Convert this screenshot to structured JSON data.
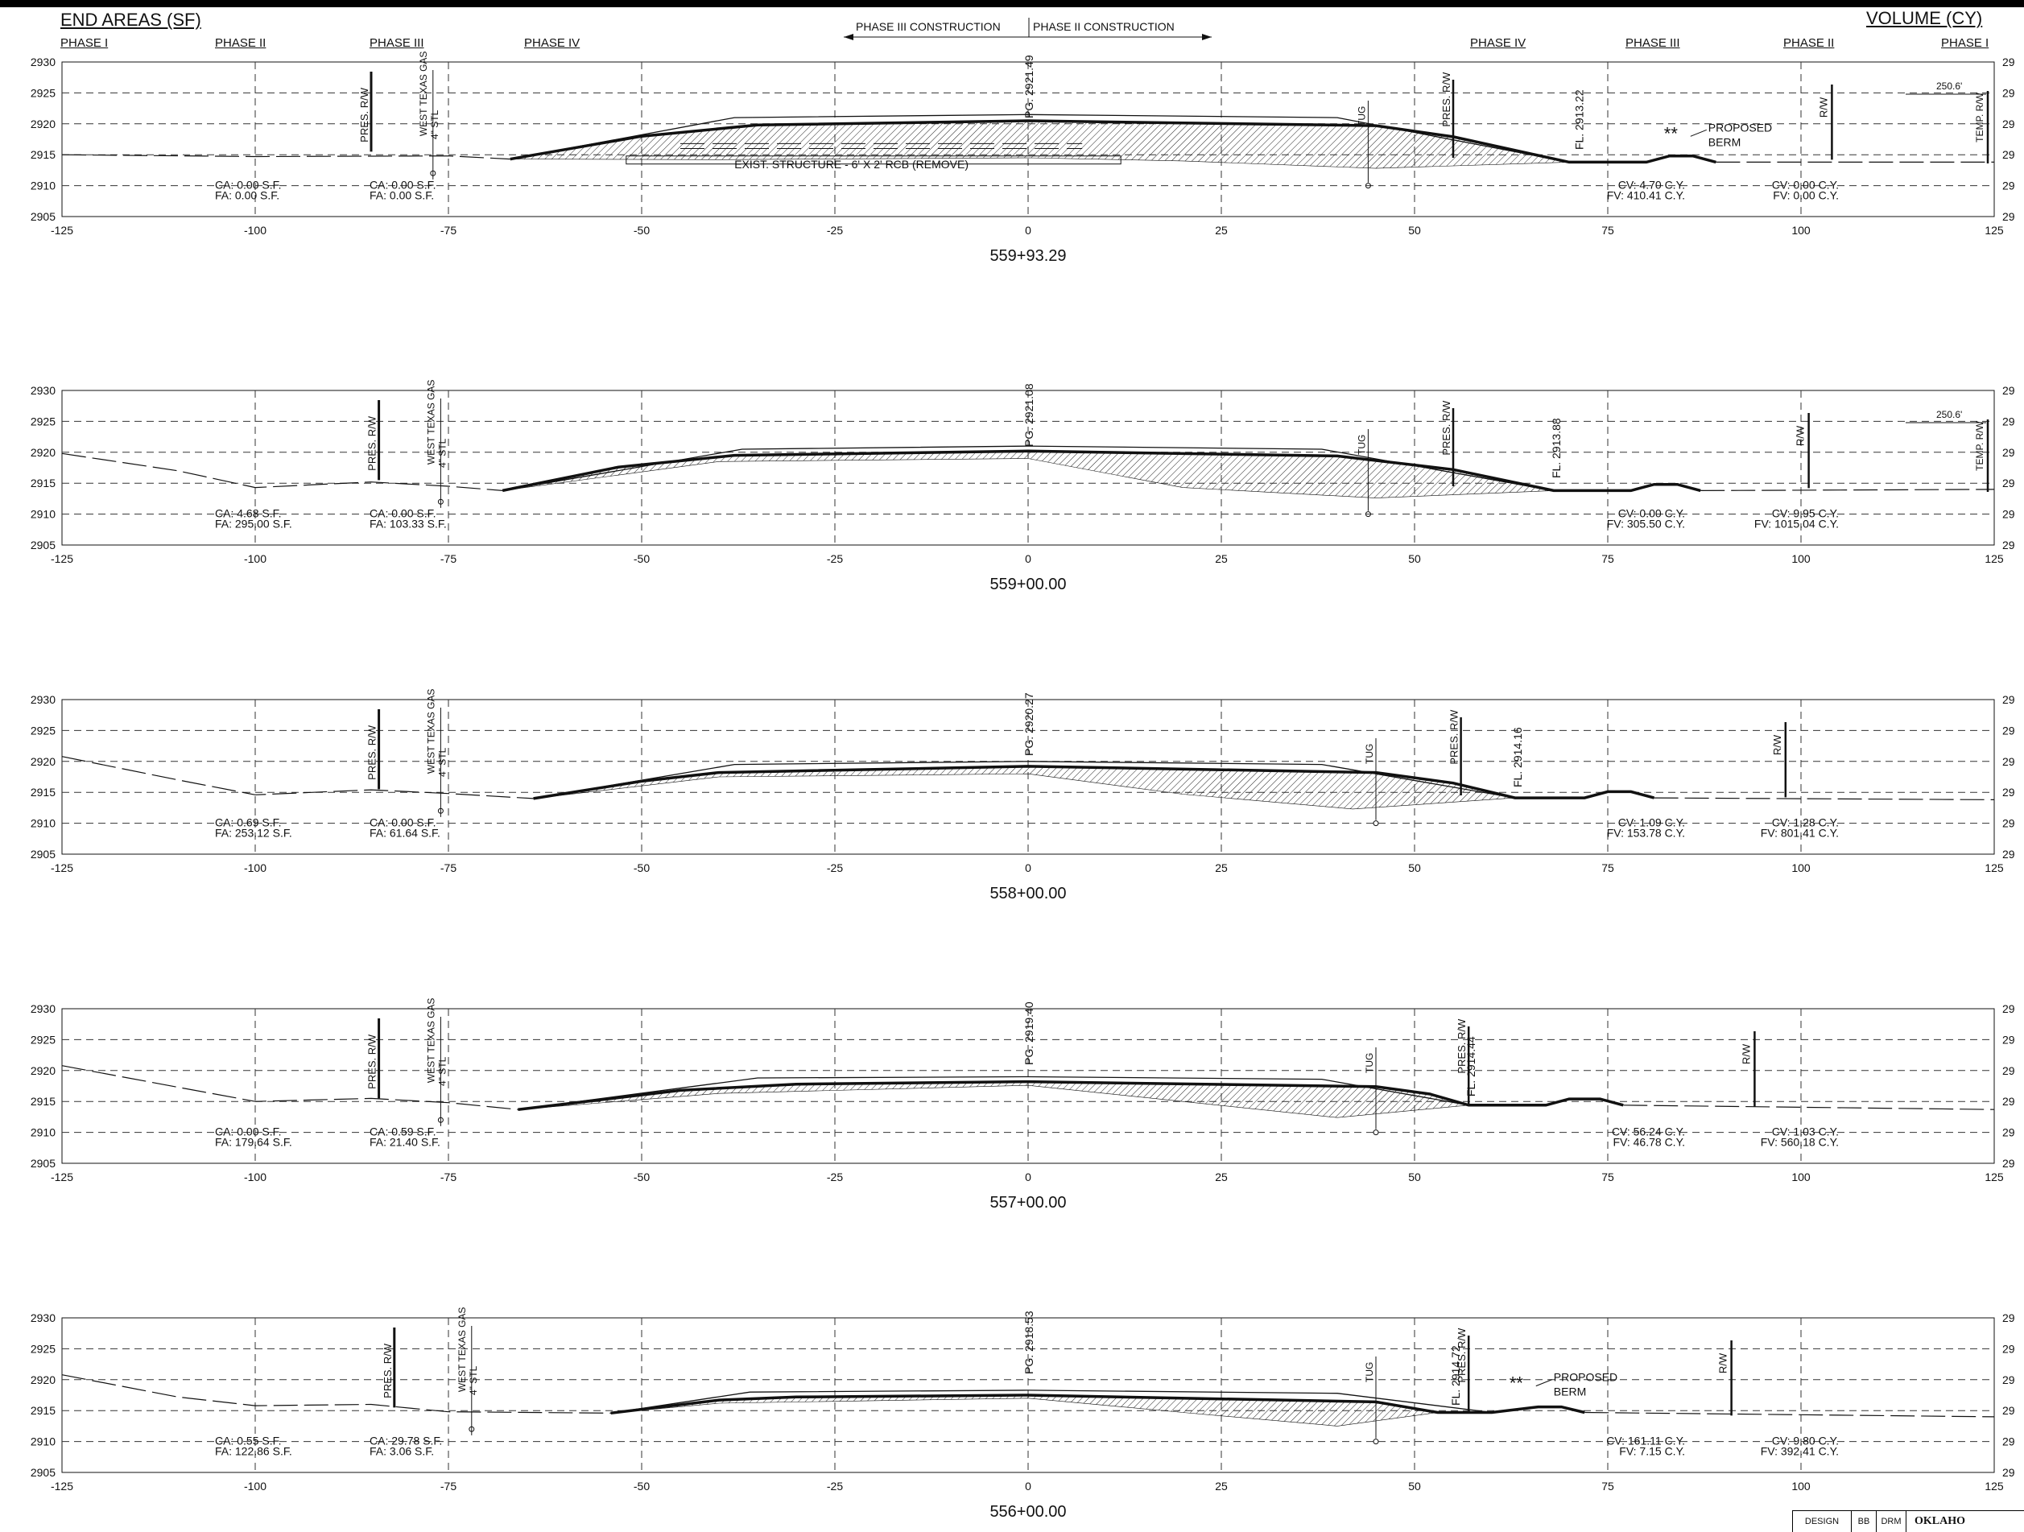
{
  "header": {
    "end_areas_title": "END AREAS (SF)",
    "volume_title": "VOLUME (CY)",
    "phase_left": [
      "PHASE I",
      "PHASE II",
      "PHASE III",
      "PHASE IV"
    ],
    "phase_right": [
      "PHASE IV",
      "PHASE III",
      "PHASE II",
      "PHASE I"
    ],
    "construction_left": "PHASE III CONSTRUCTION",
    "construction_right": "PHASE II CONSTRUCTION"
  },
  "axes": {
    "x_ticks": [
      -125,
      -100,
      -75,
      -50,
      -25,
      0,
      25,
      50,
      75,
      100,
      125
    ],
    "y_ticks": [
      2930,
      2925,
      2920,
      2915,
      2910,
      2905
    ],
    "right_edge_labels": [
      "29",
      "29",
      "29",
      "29",
      "29",
      "29"
    ]
  },
  "sections": [
    {
      "station": "559+93.29",
      "pg": "PG. 2921.49",
      "fl": "FL. 2913.22",
      "ca": "CA: 0.00 S.F.",
      "fa": "FA: 0.00 S.F.",
      "ca2": "CA: 0.00 S.F.",
      "fa2": "FA: 0.00 S.F.",
      "cv": "CV: 4.70 C.Y.",
      "fv": "FV: 410.41 C.Y.",
      "cv2": "CV: 0.00 C.Y.",
      "fv2": "FV: 0.00 C.Y.",
      "structure": "EXIST. STRUCTURE - 6' X 2' RCB (REMOVE)",
      "berm": [
        "PROPOSED",
        "BERM"
      ],
      "stars": "**",
      "dim": "250.6'",
      "labels": {
        "pres_rw": "PRES. R/W",
        "gas": "WEST TEXAS GAS",
        "stl": "4\" STL",
        "tug": "TUG",
        "rw": "R/W",
        "temp_rw": "TEMP. R/W"
      }
    },
    {
      "station": "559+00.00",
      "pg": "PG. 2921.08",
      "fl": "FL. 2913.88",
      "ca": "CA: 4.68 S.F.",
      "fa": "FA: 295.00 S.F.",
      "ca2": "CA: 0.00 S.F.",
      "fa2": "FA: 103.33 S.F.",
      "cv": "CV: 0.00 C.Y.",
      "fv": "FV: 305.50 C.Y.",
      "cv2": "CV: 9.95 C.Y.",
      "fv2": "FV: 1015.04 C.Y.",
      "dim": "250.6'",
      "labels": {
        "pres_rw": "PRES. R/W",
        "gas": "WEST TEXAS GAS",
        "stl": "4\" STL",
        "tug": "TUG",
        "rw": "R/W",
        "temp_rw": "TEMP. R/W"
      }
    },
    {
      "station": "558+00.00",
      "pg": "PG. 2920.27",
      "fl": "FL. 2914.16",
      "ca": "CA: 0.69 S.F.",
      "fa": "FA: 253.12 S.F.",
      "ca2": "CA: 0.00 S.F.",
      "fa2": "FA: 61.64 S.F.",
      "cv": "CV: 1.09 C.Y.",
      "fv": "FV: 153.78 C.Y.",
      "cv2": "CV: 1.28 C.Y.",
      "fv2": "FV: 801.41 C.Y.",
      "labels": {
        "pres_rw": "PRES. R/W",
        "gas": "WEST TEXAS GAS",
        "stl": "4\" STL",
        "tug": "TUG",
        "rw": "R/W"
      }
    },
    {
      "station": "557+00.00",
      "pg": "PG. 2919.40",
      "fl": "FL. 2914.44",
      "ca": "CA: 0.00 S.F.",
      "fa": "FA: 179.64 S.F.",
      "ca2": "CA: 0.59 S.F.",
      "fa2": "FA: 21.40 S.F.",
      "cv": "CV: 56.24 C.Y.",
      "fv": "FV: 46.78 C.Y.",
      "cv2": "CV: 1.03 C.Y.",
      "fv2": "FV: 560.18 C.Y.",
      "labels": {
        "pres_rw": "PRES. R/W",
        "gas": "WEST TEXAS GAS",
        "stl": "4\" STL",
        "tug": "TUG",
        "rw": "R/W"
      }
    },
    {
      "station": "556+00.00",
      "pg": "PG. 2918.53",
      "fl": "FL. 2914.72",
      "ca": "CA: 0.55 S.F.",
      "fa": "FA: 122.86 S.F.",
      "ca2": "CA: 29.78 S.F.",
      "fa2": "FA: 3.06 S.F.",
      "cv": "CV: 161.11 C.Y.",
      "fv": "FV: 7.15 C.Y.",
      "cv2": "CV: 9.80 C.Y.",
      "fv2": "FV: 392.41 C.Y.",
      "berm": [
        "PROPOSED",
        "BERM"
      ],
      "stars": "**",
      "labels": {
        "pres_rw": "PRES. R/W",
        "gas": "WEST TEXAS GAS",
        "stl": "4\" STL",
        "tug": "TUG",
        "rw": "R/W"
      }
    }
  ],
  "title_block": {
    "cells": [
      "DESIGN",
      "BB",
      "DRM"
    ],
    "org": "OKLAHO"
  }
}
